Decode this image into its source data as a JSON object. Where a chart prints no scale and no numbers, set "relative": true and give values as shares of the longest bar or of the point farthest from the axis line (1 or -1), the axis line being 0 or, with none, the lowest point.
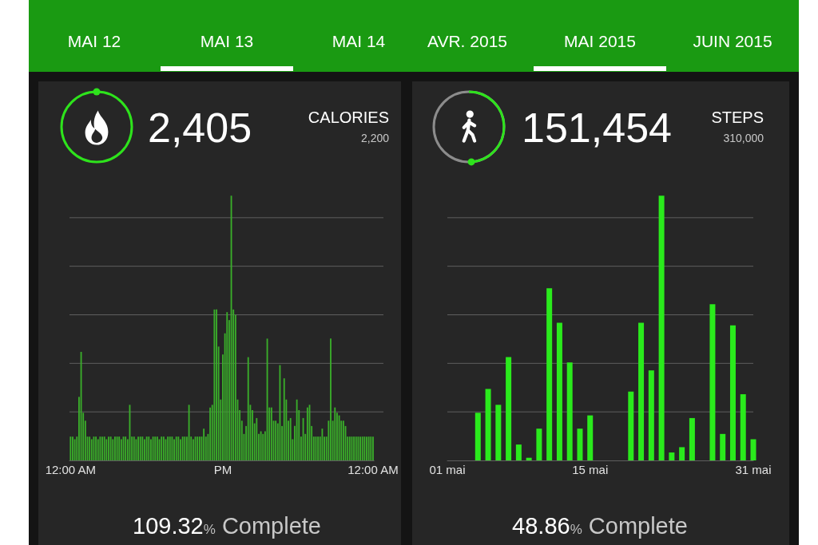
{
  "chart_data": [
    {
      "type": "bar",
      "relative": true,
      "title": "CALORIES",
      "annotations": [
        "MAI 12",
        "MAI 13",
        "MAI 14",
        "2,405",
        "2,200",
        "109.32% Complete"
      ],
      "categories": [
        "12:00 AM",
        null,
        null,
        null,
        null,
        null,
        null,
        null,
        null,
        null,
        null,
        null,
        null,
        null,
        null,
        null,
        null,
        null,
        null,
        null,
        null,
        null,
        null,
        null,
        null,
        null,
        null,
        null,
        null,
        null,
        null,
        null,
        null,
        null,
        null,
        null,
        null,
        null,
        null,
        null,
        null,
        null,
        null,
        null,
        null,
        null,
        null,
        null,
        null,
        null,
        null,
        null,
        null,
        null,
        null,
        null,
        null,
        null,
        null,
        null,
        null,
        null,
        null,
        null,
        null,
        null,
        null,
        null,
        null,
        null,
        null,
        null,
        "PM",
        null,
        null,
        null,
        null,
        null,
        null,
        null,
        null,
        null,
        null,
        null,
        null,
        null,
        null,
        null,
        null,
        null,
        null,
        null,
        null,
        null,
        null,
        null,
        null,
        null,
        null,
        null,
        null,
        null,
        null,
        null,
        null,
        null,
        null,
        null,
        null,
        null,
        null,
        null,
        null,
        null,
        null,
        null,
        null,
        null,
        null,
        null,
        null,
        null,
        null,
        null,
        null,
        null,
        null,
        null,
        null,
        null,
        null,
        null,
        null,
        null,
        null,
        null,
        null,
        null,
        null,
        null,
        null,
        null,
        null,
        "12:00 AM"
      ],
      "values": [
        0.09,
        0.09,
        0.08,
        0.09,
        0.24,
        0.41,
        0.18,
        0.15,
        0.09,
        0.09,
        0.08,
        0.09,
        0.09,
        0.08,
        0.09,
        0.09,
        0.09,
        0.08,
        0.09,
        0.09,
        0.08,
        0.09,
        0.09,
        0.09,
        0.08,
        0.09,
        0.09,
        0.08,
        0.21,
        0.09,
        0.09,
        0.08,
        0.09,
        0.09,
        0.09,
        0.08,
        0.09,
        0.09,
        0.08,
        0.09,
        0.09,
        0.09,
        0.08,
        0.09,
        0.09,
        0.08,
        0.09,
        0.09,
        0.09,
        0.08,
        0.09,
        0.09,
        0.08,
        0.09,
        0.09,
        0.09,
        0.21,
        0.09,
        0.08,
        0.09,
        0.09,
        0.09,
        0.09,
        0.12,
        0.09,
        0.1,
        0.2,
        0.21,
        0.57,
        0.57,
        0.43,
        0.23,
        0.4,
        0.48,
        0.56,
        0.53,
        1,
        0.57,
        0.55,
        0.23,
        0.19,
        0.15,
        0.1,
        0.13,
        0.39,
        0.21,
        0.19,
        0.14,
        0.16,
        0.1,
        0.11,
        0.1,
        0.11,
        0.46,
        0.2,
        0.2,
        0.15,
        0.15,
        0.14,
        0.36,
        0.13,
        0.31,
        0.23,
        0.15,
        0.16,
        0.08,
        0.13,
        0.23,
        0.19,
        0.09,
        0.16,
        0.1,
        0.2,
        0.21,
        0.13,
        0.09,
        0.09,
        0.09,
        0.09,
        0.12,
        0.09,
        0.09,
        0.15,
        0.46,
        0.15,
        0.2,
        0.18,
        0.17,
        0.15,
        0.15,
        0.13,
        0.09,
        0.09,
        0.09,
        0.09,
        0.09,
        0.09,
        0.09,
        0.09,
        0.09,
        0.09,
        0.09,
        0.09,
        0.09
      ],
      "color": "#3aae2a",
      "grid": "y"
    },
    {
      "type": "bar",
      "relative": true,
      "title": "STEPS",
      "annotations": [
        "AVR. 2015",
        "MAI 2015",
        "JUIN 2015",
        "151,454",
        "310,000",
        "48.86% Complete"
      ],
      "categories": [
        "01 mai",
        null,
        null,
        null,
        null,
        null,
        null,
        null,
        null,
        null,
        null,
        null,
        null,
        null,
        "15 mai",
        null,
        null,
        null,
        null,
        null,
        null,
        null,
        null,
        null,
        null,
        null,
        null,
        null,
        null,
        null,
        "31 mai"
      ],
      "values": [
        0,
        0,
        0,
        0.18,
        0.27,
        0.21,
        0.39,
        0.06,
        0.01,
        0.12,
        0.65,
        0.52,
        0.37,
        0.12,
        0.17,
        0,
        0,
        0,
        0.26,
        0.52,
        0.34,
        1,
        0.03,
        0.05,
        0.16,
        0,
        0.59,
        0.1,
        0.51,
        0.25,
        0.08
      ],
      "color": "#2aea1c",
      "grid": "y"
    }
  ]
}
